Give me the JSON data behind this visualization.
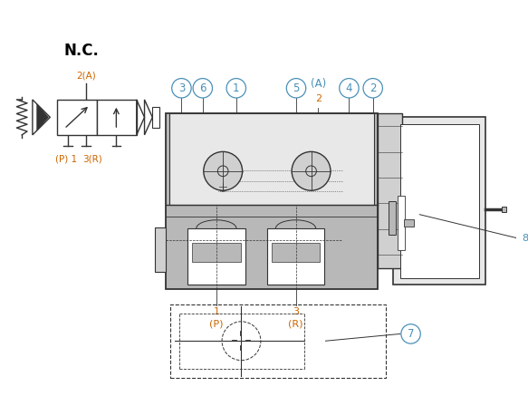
{
  "bg_color": "#ffffff",
  "lc": "#333333",
  "oc": "#cc6600",
  "bc": "#4a90b8",
  "gc": "#b8b8b8",
  "gc2": "#d0d0d0",
  "gc3": "#e8e8e8",
  "wc": "#ffffff",
  "nc_label": "N.C.",
  "label8": "8",
  "label7": "7",
  "sym_2A": "2(A)",
  "sym_P": "(P) 1",
  "sym_R": "3(R)",
  "lbl_P": "(P)",
  "lbl_R": "(R)",
  "lbl_1": "1",
  "lbl_3": "3"
}
